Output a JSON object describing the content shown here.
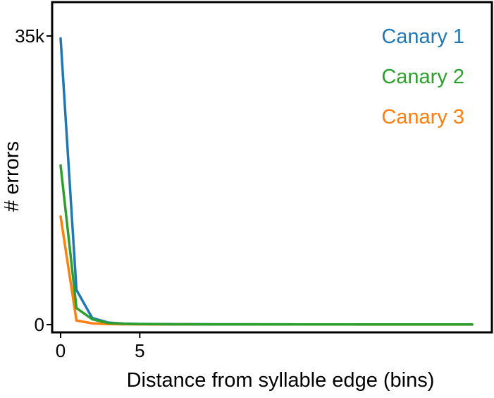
{
  "chart_data": {
    "type": "line",
    "title": "",
    "xlabel": "Distance from syllable edge (bins)",
    "ylabel": "# errors",
    "xlim": [
      0,
      26
    ],
    "ylim": [
      0,
      35000
    ],
    "xticks": [
      {
        "value": 0,
        "label": "0"
      },
      {
        "value": 5,
        "label": "5"
      }
    ],
    "yticks": [
      {
        "value": 0,
        "label": "0"
      },
      {
        "value": 35000,
        "label": "35k"
      }
    ],
    "grid": false,
    "legend_position": "top-right",
    "x": [
      0,
      1,
      2,
      3,
      4,
      5,
      6,
      7,
      8,
      9,
      10,
      11,
      12,
      13,
      14,
      15,
      16,
      17,
      18,
      19,
      20,
      21,
      22,
      23,
      24,
      25,
      26
    ],
    "series": [
      {
        "name": "Canary 1",
        "color": "#1f77b4",
        "values": [
          34700,
          4200,
          800,
          250,
          120,
          80,
          60,
          50,
          45,
          40,
          38,
          36,
          34,
          32,
          30,
          28,
          27,
          26,
          25,
          24,
          23,
          22,
          21,
          20,
          20,
          20,
          20
        ]
      },
      {
        "name": "Canary 2",
        "color": "#2ca02c",
        "values": [
          19300,
          2000,
          650,
          200,
          100,
          70,
          55,
          45,
          40,
          36,
          34,
          32,
          30,
          28,
          27,
          26,
          25,
          24,
          23,
          22,
          21,
          20,
          20,
          20,
          20,
          20,
          20
        ]
      },
      {
        "name": "Canary 3",
        "color": "#ff7f0e",
        "values": [
          13100,
          500,
          150,
          60,
          40,
          30,
          25,
          22,
          20,
          19,
          18,
          17,
          16,
          15,
          15,
          14,
          14,
          13,
          13,
          12,
          12,
          12,
          11,
          11,
          11,
          11,
          11
        ]
      }
    ]
  }
}
